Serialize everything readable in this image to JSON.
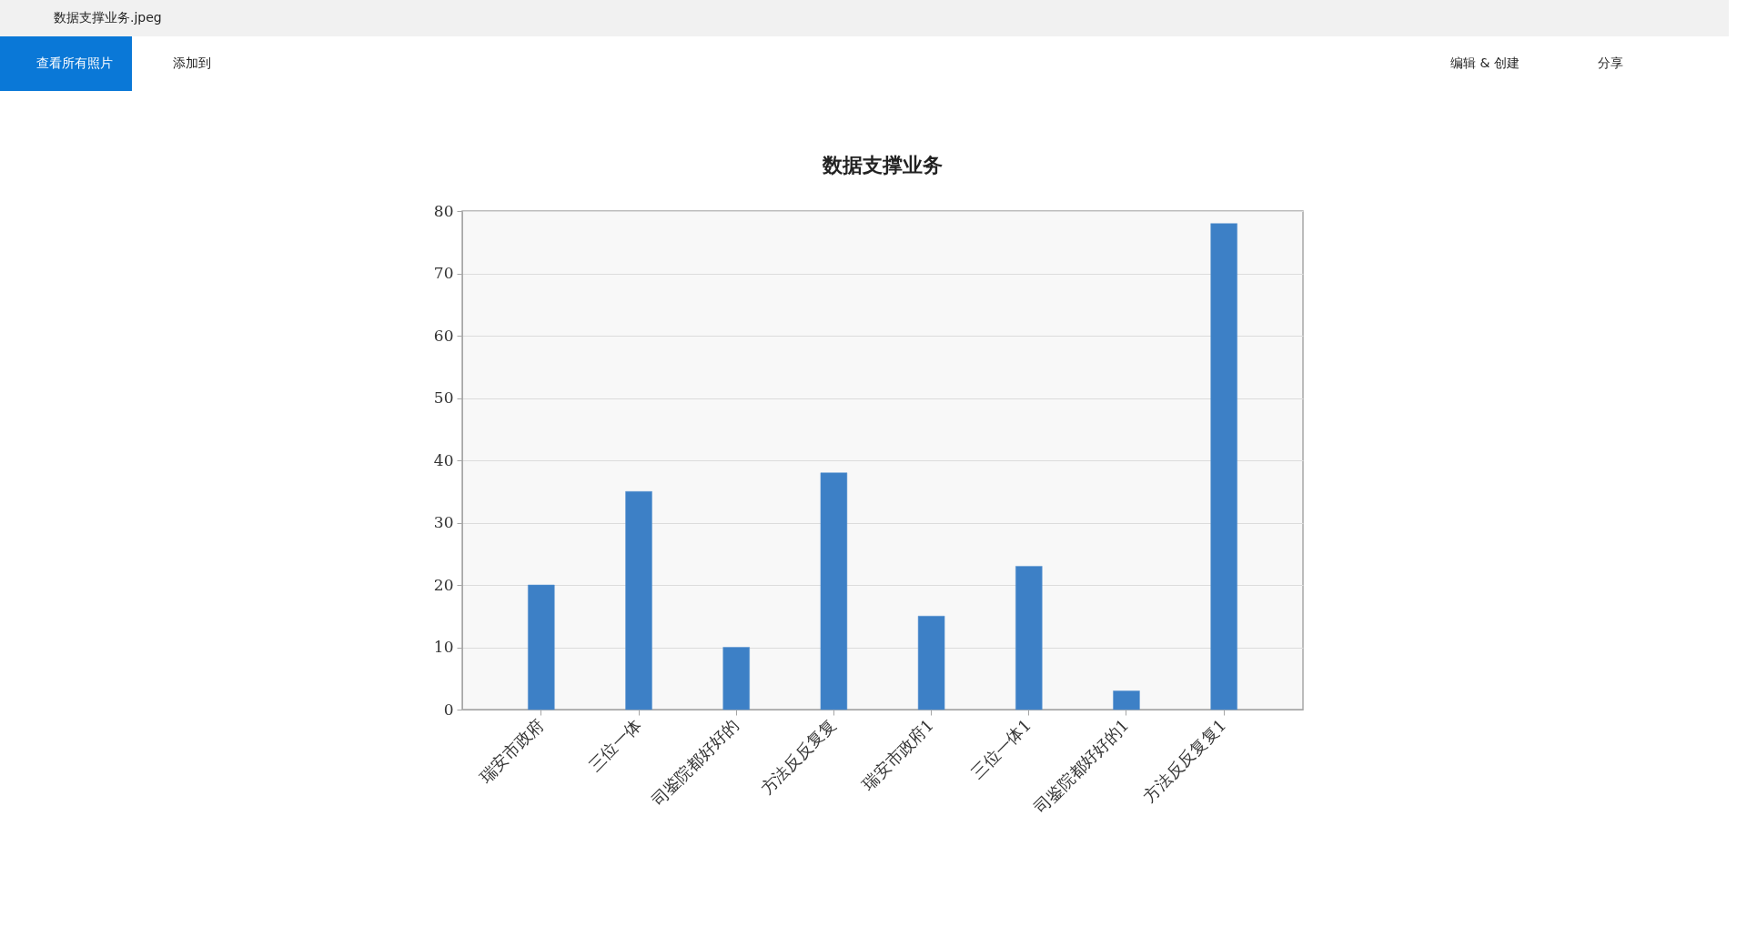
{
  "chart_data": {
    "type": "bar",
    "title": "数据支撑业务",
    "categories": [
      "瑞安市政府",
      "三位一体",
      "司鉴院都好好的",
      "方法反反复复",
      "瑞安市政府1",
      "三位一体1",
      "司鉴院都好好的1",
      "方法反反复复1"
    ],
    "values": [
      20,
      35,
      10,
      38,
      15,
      23,
      3,
      78
    ],
    "color": "#3d80c6",
    "ylim": [
      0,
      80
    ],
    "yticks": [
      0,
      10,
      20,
      30,
      40,
      50,
      60,
      70,
      80
    ],
    "grid": "y",
    "annotations": [
      "数据支撑业务.jpeg",
      "查看所有照片",
      "添加到",
      "编辑 & 创建",
      "分享"
    ]
  }
}
